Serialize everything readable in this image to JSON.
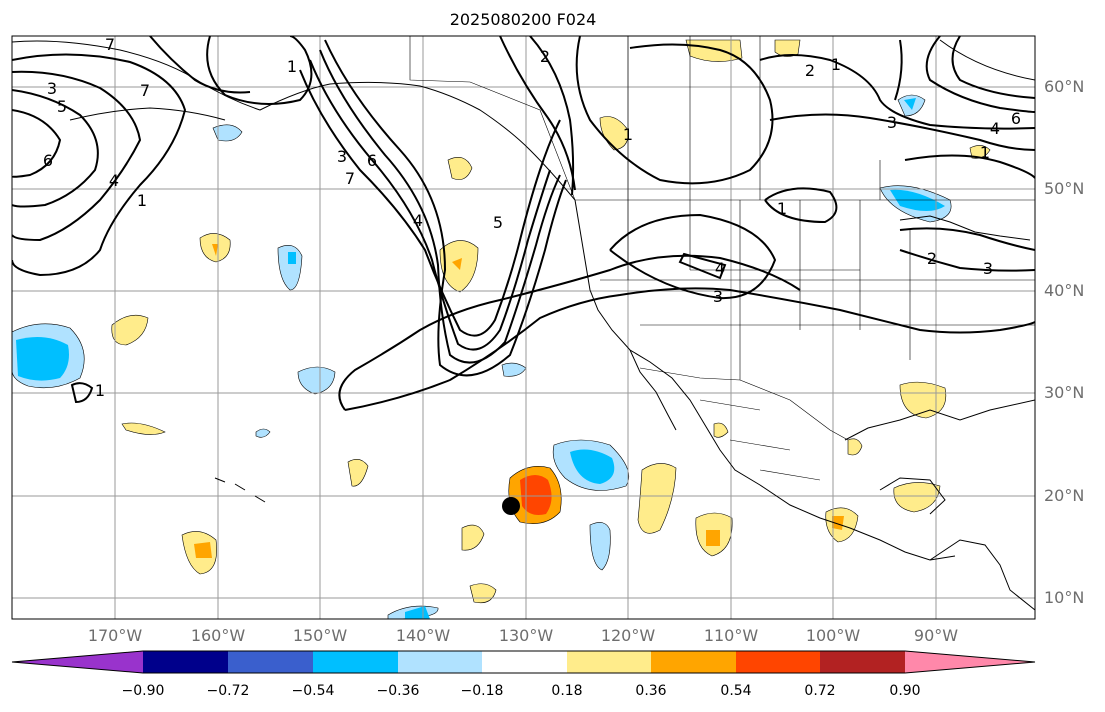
{
  "title": "2025080200 F024",
  "lat_labels": [
    "60°N",
    "50°N",
    "40°N",
    "30°N",
    "20°N",
    "10°N"
  ],
  "lon_labels": [
    "170°W",
    "160°W",
    "150°W",
    "140°W",
    "130°W",
    "120°W",
    "110°W",
    "100°W",
    "90°W"
  ],
  "colorbar": {
    "ticks": [
      "−0.90",
      "−0.72",
      "−0.54",
      "−0.36",
      "−0.18",
      "0.18",
      "0.36",
      "0.54",
      "0.72",
      "0.90"
    ],
    "colors": [
      "#9933cc",
      "#00008b",
      "#3a5fcd",
      "#00bfff",
      "#b0e2ff",
      "#ffffff",
      "#ffec8b",
      "#ffa500",
      "#ff4500",
      "#b22222",
      "#ff88aa"
    ]
  },
  "contour_labels": [
    "3",
    "5",
    "6",
    "7",
    "4",
    "1",
    "7",
    "1",
    "3",
    "6",
    "7",
    "4",
    "5",
    "2",
    "1",
    "2",
    "1",
    "3",
    "6",
    "4",
    "1",
    "1",
    "4",
    "3",
    "2",
    "3",
    "1"
  ],
  "marker": "storm-center-dot"
}
